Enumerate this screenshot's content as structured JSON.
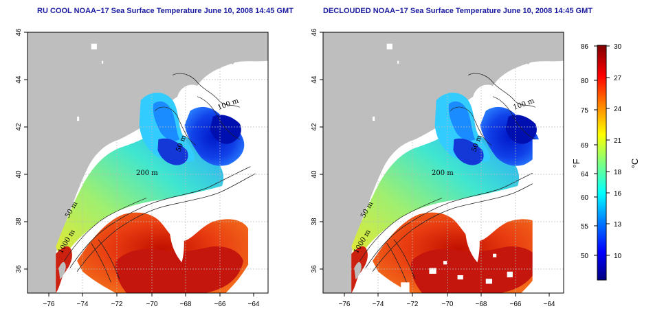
{
  "panels": [
    {
      "title": "RU COOL NOAA−17 Sea Surface Temperature June 10, 2008 14:45 GMT",
      "x_ticks": [
        "−76",
        "−74",
        "−72",
        "−70",
        "−68",
        "−66",
        "−64"
      ],
      "y_ticks": [
        "46",
        "44",
        "42",
        "40",
        "38",
        "36"
      ],
      "contour_labels": [
        "100 m",
        "50 m",
        "200 m",
        "50 m",
        "1000 m"
      ]
    },
    {
      "title": "DECLOUDED NOAA−17 Sea Surface Temperature June 10, 2008 14:45 GMT",
      "x_ticks": [
        "−76",
        "−74",
        "−72",
        "−70",
        "−68",
        "−66",
        "−64"
      ],
      "y_ticks": [
        "46",
        "44",
        "42",
        "40",
        "38",
        "36"
      ],
      "contour_labels": [
        "100 m",
        "50 m",
        "200 m",
        "50 m",
        "1000 m"
      ]
    }
  ],
  "map_extent": {
    "lon": [
      -77,
      -63
    ],
    "lat": [
      35,
      46
    ]
  },
  "colorbar": {
    "fahrenheit_unit": "°F",
    "celsius_unit": "°C",
    "fahrenheit_ticks": [
      "86",
      "80",
      "75",
      "69",
      "64",
      "60",
      "55",
      "50"
    ],
    "celsius_ticks": [
      "30",
      "27",
      "24",
      "21",
      "18",
      "16",
      "13",
      "10"
    ],
    "celsius_range": [
      7,
      30
    ],
    "colors": [
      "#00007f",
      "#0000ff",
      "#007fff",
      "#00ffff",
      "#7fff7f",
      "#ffff00",
      "#ff7f00",
      "#ff0000",
      "#7f0000"
    ]
  },
  "colors": {
    "land": "#bebebe",
    "title": "#1a1aa0",
    "grid": "#bbbbbb"
  }
}
